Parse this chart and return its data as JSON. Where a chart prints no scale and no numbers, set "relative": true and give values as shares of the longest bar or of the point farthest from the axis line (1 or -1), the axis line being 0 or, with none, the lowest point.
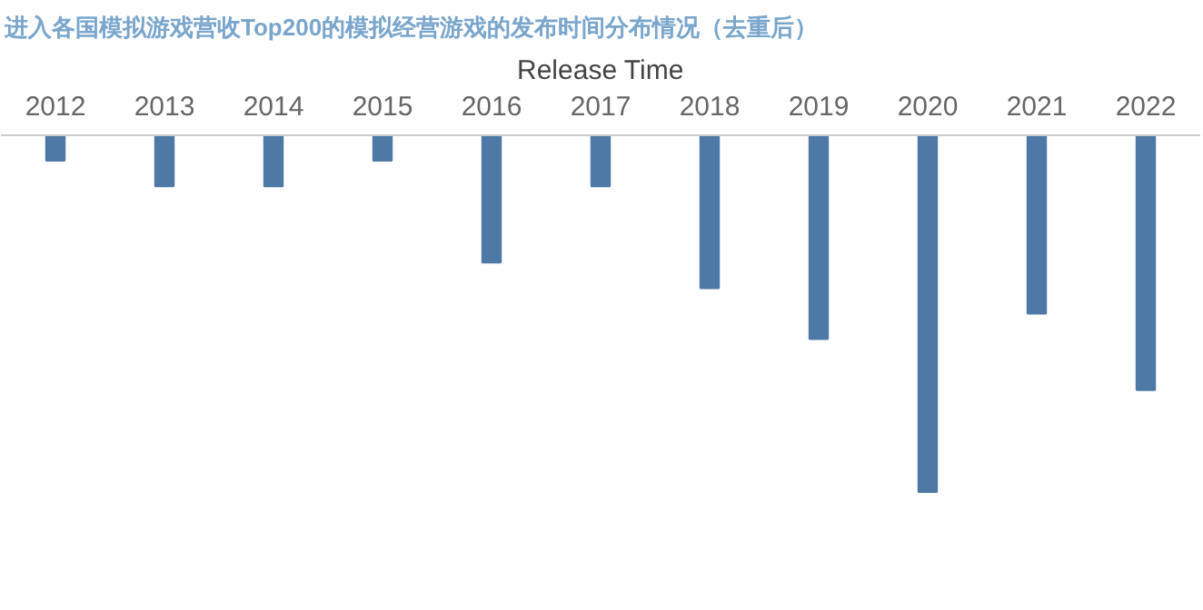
{
  "chart_data": {
    "type": "bar",
    "title": "进入各国模拟游戏营收Top200的模拟经营游戏的发布时间分布情况（去重后）",
    "xlabel": "Release Time",
    "categories": [
      "2012",
      "2013",
      "2014",
      "2015",
      "2016",
      "2017",
      "2018",
      "2019",
      "2020",
      "2021",
      "2022"
    ],
    "values": [
      -0.071,
      -0.143,
      -0.143,
      -0.071,
      -0.357,
      -0.143,
      -0.429,
      -0.571,
      -1,
      -0.5,
      -0.714
    ],
    "color": "#4e79a7",
    "relative": true,
    "grid": false
  }
}
